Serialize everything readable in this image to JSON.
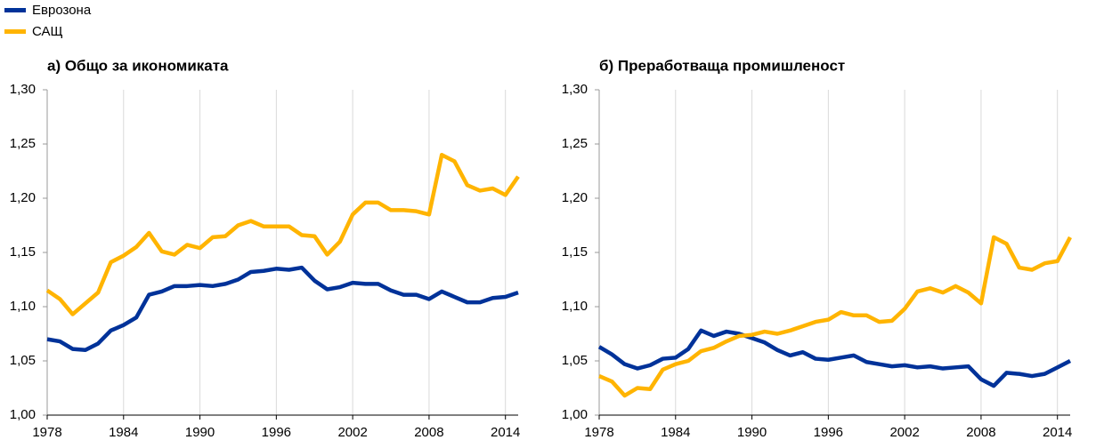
{
  "chart_data": [
    {
      "type": "line",
      "title": "а) Общо за икономиката",
      "x": [
        1978,
        1979,
        1980,
        1981,
        1982,
        1983,
        1984,
        1985,
        1986,
        1987,
        1988,
        1989,
        1990,
        1991,
        1992,
        1993,
        1994,
        1995,
        1996,
        1997,
        1998,
        1999,
        2000,
        2001,
        2002,
        2003,
        2004,
        2005,
        2006,
        2007,
        2008,
        2009,
        2010,
        2011,
        2012,
        2013,
        2014,
        2015
      ],
      "series": [
        {
          "name": "Еврозона",
          "color": "#003299",
          "values": [
            1.07,
            1.068,
            1.061,
            1.06,
            1.066,
            1.078,
            1.083,
            1.09,
            1.111,
            1.114,
            1.119,
            1.119,
            1.12,
            1.119,
            1.121,
            1.125,
            1.132,
            1.133,
            1.135,
            1.134,
            1.136,
            1.124,
            1.116,
            1.118,
            1.122,
            1.121,
            1.121,
            1.115,
            1.111,
            1.111,
            1.107,
            1.114,
            1.109,
            1.104,
            1.104,
            1.108,
            1.109,
            1.113
          ]
        },
        {
          "name": "САЩ",
          "color": "#ffb400",
          "values": [
            1.115,
            1.107,
            1.093,
            1.103,
            1.113,
            1.141,
            1.147,
            1.155,
            1.168,
            1.151,
            1.148,
            1.157,
            1.154,
            1.164,
            1.165,
            1.175,
            1.179,
            1.174,
            1.174,
            1.174,
            1.166,
            1.165,
            1.148,
            1.16,
            1.185,
            1.196,
            1.196,
            1.189,
            1.189,
            1.188,
            1.185,
            1.24,
            1.234,
            1.212,
            1.207,
            1.209,
            1.203,
            1.22
          ]
        }
      ],
      "xlim": [
        1978,
        2015
      ],
      "xticks": [
        1978,
        1984,
        1990,
        1996,
        2002,
        2008,
        2014
      ],
      "ylim": [
        1.0,
        1.3
      ],
      "yticks": [
        {
          "value": 1.0,
          "label": "1,00"
        },
        {
          "value": 1.05,
          "label": "1,05"
        },
        {
          "value": 1.1,
          "label": "1,10"
        },
        {
          "value": 1.15,
          "label": "1,15"
        },
        {
          "value": 1.2,
          "label": "1,20"
        },
        {
          "value": 1.25,
          "label": "1,25"
        },
        {
          "value": 1.3,
          "label": "1,30"
        }
      ],
      "grid": "x"
    },
    {
      "type": "line",
      "title": "б) Преработваща промишленост",
      "x": [
        1978,
        1979,
        1980,
        1981,
        1982,
        1983,
        1984,
        1985,
        1986,
        1987,
        1988,
        1989,
        1990,
        1991,
        1992,
        1993,
        1994,
        1995,
        1996,
        1997,
        1998,
        1999,
        2000,
        2001,
        2002,
        2003,
        2004,
        2005,
        2006,
        2007,
        2008,
        2009,
        2010,
        2011,
        2012,
        2013,
        2014,
        2015
      ],
      "series": [
        {
          "name": "Еврозона",
          "color": "#003299",
          "values": [
            1.063,
            1.056,
            1.047,
            1.043,
            1.046,
            1.052,
            1.053,
            1.061,
            1.078,
            1.073,
            1.077,
            1.075,
            1.071,
            1.067,
            1.06,
            1.055,
            1.058,
            1.052,
            1.051,
            1.053,
            1.055,
            1.049,
            1.047,
            1.045,
            1.046,
            1.044,
            1.045,
            1.043,
            1.044,
            1.045,
            1.033,
            1.027,
            1.039,
            1.038,
            1.036,
            1.038,
            1.044,
            1.05
          ]
        },
        {
          "name": "САЩ",
          "color": "#ffb400",
          "values": [
            1.036,
            1.031,
            1.018,
            1.025,
            1.024,
            1.042,
            1.047,
            1.05,
            1.059,
            1.062,
            1.068,
            1.073,
            1.074,
            1.077,
            1.075,
            1.078,
            1.082,
            1.086,
            1.088,
            1.095,
            1.092,
            1.092,
            1.086,
            1.087,
            1.098,
            1.114,
            1.117,
            1.113,
            1.119,
            1.113,
            1.103,
            1.164,
            1.158,
            1.136,
            1.134,
            1.14,
            1.142,
            1.164
          ]
        }
      ],
      "xlim": [
        1978,
        2015
      ],
      "xticks": [
        1978,
        1984,
        1990,
        1996,
        2002,
        2008,
        2014
      ],
      "ylim": [
        1.0,
        1.3
      ],
      "yticks": [
        {
          "value": 1.0,
          "label": "1,00"
        },
        {
          "value": 1.05,
          "label": "1,05"
        },
        {
          "value": 1.1,
          "label": "1,10"
        },
        {
          "value": 1.15,
          "label": "1,15"
        },
        {
          "value": 1.2,
          "label": "1,20"
        },
        {
          "value": 1.25,
          "label": "1,25"
        },
        {
          "value": 1.3,
          "label": "1,30"
        }
      ],
      "grid": "x"
    }
  ]
}
